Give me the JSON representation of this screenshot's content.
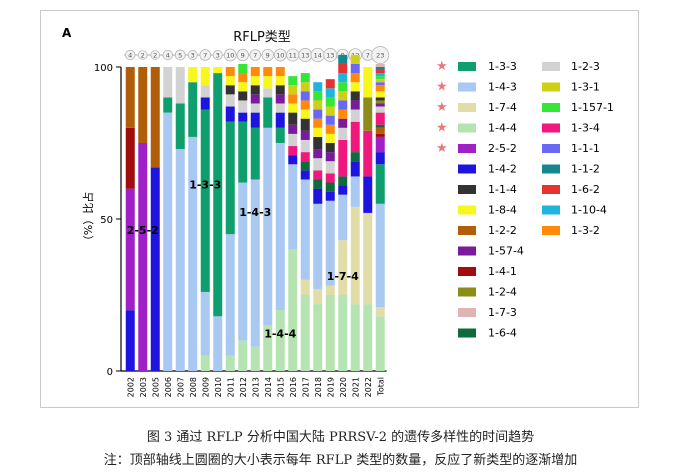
{
  "chart_data": {
    "type": "bar",
    "stacked": true,
    "panel_label": "A",
    "title": "RFLP类型",
    "ylabel": "（%）比占",
    "ylim": [
      0,
      100
    ],
    "yticks": [
      0,
      50,
      100
    ],
    "grid": false,
    "categories": [
      "2002",
      "2003",
      "2005",
      "2006",
      "2007",
      "2008",
      "2009",
      "2010",
      "2011",
      "2012",
      "2013",
      "2014",
      "2015",
      "2016",
      "2017",
      "2018",
      "2019",
      "2020",
      "2021",
      "2022",
      "Total"
    ],
    "type_counts": [
      4,
      2,
      2,
      4,
      5,
      3,
      7,
      3,
      10,
      9,
      7,
      9,
      10,
      11,
      13,
      14,
      13,
      9,
      12,
      7,
      23
    ],
    "legend_col1": [
      "1-3-3",
      "1-4-3",
      "1-7-4",
      "1-4-4",
      "2-5-2",
      "1-4-2",
      "1-1-4",
      "1-8-4",
      "1-2-2",
      "1-57-4",
      "1-4-1",
      "1-2-4",
      "1-7-3",
      "1-6-4"
    ],
    "legend_col2": [
      "1-2-3",
      "1-3-1",
      "1-157-1",
      "1-3-4",
      "1-1-1",
      "1-1-2",
      "1-6-2",
      "1-10-4",
      "1-3-2"
    ],
    "starred": [
      "1-3-3",
      "1-4-3",
      "1-7-4",
      "1-4-4",
      "2-5-2"
    ],
    "colors": {
      "1-3-3": "#0f9f6e",
      "1-4-3": "#a9c8f2",
      "1-7-4": "#e2dca8",
      "1-4-4": "#b6e3b2",
      "2-5-2": "#a020c8",
      "1-4-2": "#1e14e0",
      "1-1-4": "#333333",
      "1-8-4": "#f7f71c",
      "1-2-2": "#b05e0a",
      "1-57-4": "#7a1b9c",
      "1-4-1": "#a10d0d",
      "1-2-4": "#8c8c1a",
      "1-7-3": "#e0b4b4",
      "1-6-4": "#0e6b3a",
      "1-2-3": "#d2d2d2",
      "1-3-1": "#cfcf18",
      "1-157-1": "#36e636",
      "1-3-4": "#f0187c",
      "1-1-1": "#6868f5",
      "1-1-2": "#15868e",
      "1-6-2": "#e63232",
      "1-10-4": "#1eb4dc",
      "1-3-2": "#ff8a0a"
    },
    "annotations": [
      {
        "text": "2-5-2",
        "category": "2003",
        "y": 45
      },
      {
        "text": "1-3-3",
        "category": "2009",
        "y": 60
      },
      {
        "text": "1-4-3",
        "category": "2013",
        "y": 51
      },
      {
        "text": "1-7-4",
        "category": "2020",
        "y": 30
      },
      {
        "text": "1-4-4",
        "category": "2015",
        "y": 11
      }
    ],
    "series": [
      {
        "name": "1-4-4",
        "values": [
          0,
          0,
          0,
          0,
          0,
          0,
          5,
          0,
          5,
          10,
          8,
          15,
          20,
          40,
          25,
          22,
          25,
          25,
          22,
          22,
          18
        ]
      },
      {
        "name": "1-7-4",
        "values": [
          0,
          0,
          0,
          0,
          0,
          0,
          0,
          0,
          0,
          0,
          0,
          0,
          0,
          0,
          5,
          5,
          3,
          18,
          32,
          30,
          3
        ]
      },
      {
        "name": "1-4-3",
        "values": [
          0,
          0,
          0,
          85,
          73,
          77,
          21,
          18,
          40,
          52,
          55,
          65,
          55,
          28,
          33,
          28,
          28,
          15,
          10,
          0,
          34
        ]
      },
      {
        "name": "1-3-3",
        "values": [
          0,
          0,
          0,
          5,
          15,
          18,
          60,
          80,
          37,
          20,
          17,
          10,
          5,
          0,
          0,
          0,
          0,
          0,
          0,
          0,
          13
        ]
      },
      {
        "name": "1-4-2",
        "values": [
          20,
          0,
          67,
          0,
          0,
          0,
          4,
          0,
          5,
          3,
          5,
          0,
          5,
          3,
          3,
          5,
          3,
          3,
          5,
          12,
          4
        ]
      },
      {
        "name": "2-5-2",
        "values": [
          40,
          75,
          0,
          0,
          0,
          0,
          0,
          0,
          0,
          0,
          0,
          0,
          0,
          0,
          0,
          0,
          0,
          0,
          0,
          0,
          5
        ]
      },
      {
        "name": "1-4-1",
        "values": [
          20,
          0,
          0,
          0,
          0,
          0,
          0,
          0,
          0,
          0,
          0,
          0,
          0,
          0,
          0,
          0,
          0,
          0,
          0,
          0,
          1
        ]
      },
      {
        "name": "1-2-2",
        "values": [
          20,
          25,
          33,
          0,
          0,
          0,
          0,
          0,
          0,
          0,
          0,
          0,
          0,
          0,
          0,
          0,
          0,
          0,
          0,
          0,
          2
        ]
      },
      {
        "name": "1-6-4",
        "values": [
          0,
          0,
          0,
          0,
          0,
          0,
          0,
          0,
          0,
          0,
          0,
          0,
          0,
          0,
          3,
          3,
          3,
          3,
          3,
          0,
          1
        ]
      },
      {
        "name": "1-3-4",
        "values": [
          0,
          0,
          0,
          0,
          0,
          0,
          0,
          0,
          0,
          0,
          0,
          0,
          0,
          3,
          3,
          3,
          3,
          12,
          10,
          15,
          4
        ]
      },
      {
        "name": "1-2-3",
        "values": [
          0,
          0,
          0,
          10,
          12,
          0,
          4,
          0,
          4,
          4,
          3,
          3,
          3,
          4,
          4,
          4,
          4,
          4,
          4,
          0,
          2
        ]
      },
      {
        "name": "1-57-4",
        "values": [
          0,
          0,
          0,
          0,
          0,
          0,
          0,
          0,
          0,
          0,
          3,
          0,
          3,
          3,
          3,
          3,
          3,
          3,
          3,
          0,
          1
        ]
      },
      {
        "name": "1-2-4",
        "values": [
          0,
          0,
          0,
          0,
          0,
          0,
          0,
          0,
          0,
          0,
          0,
          0,
          0,
          0,
          0,
          0,
          0,
          0,
          0,
          11,
          1
        ]
      },
      {
        "name": "1-1-4",
        "values": [
          0,
          0,
          0,
          0,
          0,
          0,
          0,
          0,
          3,
          3,
          3,
          0,
          3,
          4,
          4,
          4,
          3,
          0,
          3,
          0,
          1
        ]
      },
      {
        "name": "1-8-4",
        "values": [
          0,
          0,
          0,
          0,
          0,
          5,
          6,
          2,
          3,
          3,
          3,
          4,
          3,
          3,
          3,
          3,
          3,
          0,
          3,
          10,
          2
        ]
      },
      {
        "name": "1-3-2",
        "values": [
          0,
          0,
          0,
          0,
          0,
          0,
          0,
          0,
          3,
          3,
          3,
          3,
          3,
          3,
          3,
          3,
          3,
          3,
          3,
          0,
          2
        ]
      },
      {
        "name": "1-1-1",
        "values": [
          0,
          0,
          0,
          0,
          0,
          0,
          0,
          0,
          0,
          0,
          0,
          0,
          0,
          0,
          3,
          3,
          3,
          3,
          3,
          0,
          1
        ]
      },
      {
        "name": "1-3-1",
        "values": [
          0,
          0,
          0,
          0,
          0,
          0,
          0,
          0,
          0,
          0,
          0,
          0,
          0,
          3,
          3,
          3,
          3,
          3,
          3,
          0,
          1
        ]
      },
      {
        "name": "1-157-1",
        "values": [
          0,
          0,
          0,
          0,
          0,
          0,
          0,
          0,
          0,
          3,
          0,
          0,
          0,
          3,
          3,
          3,
          3,
          3,
          0,
          0,
          1
        ]
      },
      {
        "name": "1-10-4",
        "values": [
          0,
          0,
          0,
          0,
          0,
          0,
          0,
          0,
          0,
          0,
          0,
          0,
          0,
          0,
          0,
          3,
          3,
          3,
          0,
          0,
          1
        ]
      },
      {
        "name": "1-6-2",
        "values": [
          0,
          0,
          0,
          0,
          0,
          0,
          0,
          0,
          0,
          0,
          0,
          0,
          0,
          0,
          0,
          0,
          3,
          3,
          0,
          0,
          1
        ]
      },
      {
        "name": "1-1-2",
        "values": [
          0,
          0,
          0,
          0,
          0,
          0,
          0,
          0,
          0,
          0,
          0,
          0,
          0,
          0,
          0,
          0,
          0,
          3,
          0,
          0,
          1
        ]
      },
      {
        "name": "1-7-3",
        "values": [
          0,
          0,
          0,
          0,
          0,
          0,
          0,
          0,
          0,
          0,
          0,
          0,
          0,
          0,
          0,
          0,
          0,
          0,
          0,
          0,
          1
        ]
      }
    ]
  },
  "captions": {
    "line1": "图 3 通过 RFLP 分析中国大陆 PRRSV-2 的遗传多样性的时间趋势",
    "line2": "注：顶部轴线上圆圈的大小表示每年 RFLP 类型的数量，反应了新类型的逐渐增加"
  }
}
